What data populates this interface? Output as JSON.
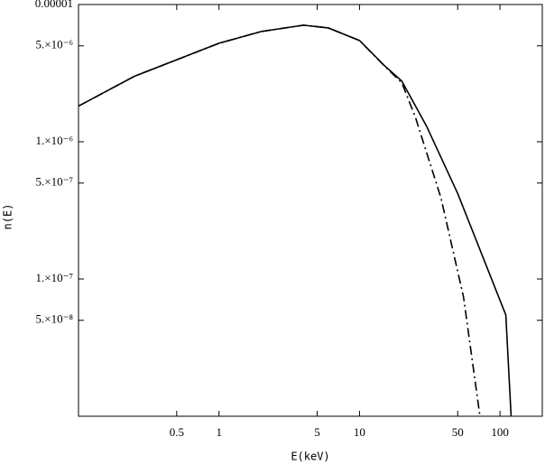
{
  "chart_data": {
    "type": "line",
    "xlabel": "E(keV)",
    "ylabel": "n(E)",
    "xscale": "log",
    "yscale": "log",
    "xlim": [
      0.1,
      200
    ],
    "ylim": [
      1e-08,
      1e-05
    ],
    "xticks": [
      0.5,
      1,
      5,
      10,
      50,
      100
    ],
    "yticks": [
      {
        "value": 1e-05,
        "label": "0.00001"
      },
      {
        "value": 5e-06,
        "label": "5.×10⁻⁶"
      },
      {
        "value": 1e-06,
        "label": "1.×10⁻⁶"
      },
      {
        "value": 5e-07,
        "label": "5.×10⁻⁷"
      },
      {
        "value": 1e-07,
        "label": "1.×10⁻⁷"
      },
      {
        "value": 5e-08,
        "label": "5.×10⁻⁸"
      }
    ],
    "series": [
      {
        "color": "#000000",
        "line_style": "solid",
        "x": [
          0.1,
          0.25,
          1,
          2,
          4,
          6,
          10,
          15,
          20,
          30,
          50,
          110,
          120
        ],
        "values": [
          1.82e-06,
          3e-06,
          5.22e-06,
          6.36e-06,
          7.07e-06,
          6.75e-06,
          5.47e-06,
          3.6e-06,
          2.77e-06,
          1.3e-06,
          4.2e-07,
          5.47e-08,
          1e-08
        ]
      },
      {
        "color": "#000000",
        "line_style": "dash-dot",
        "x": [
          0.1,
          0.25,
          1,
          2,
          4,
          6,
          10,
          15,
          20,
          25,
          38,
          55,
          72
        ],
        "values": [
          1.82e-06,
          3e-06,
          5.22e-06,
          6.36e-06,
          7.07e-06,
          6.75e-06,
          5.47e-06,
          3.58e-06,
          2.69e-06,
          1.51e-06,
          3.9e-07,
          7.4e-08,
          1e-08
        ]
      }
    ]
  }
}
